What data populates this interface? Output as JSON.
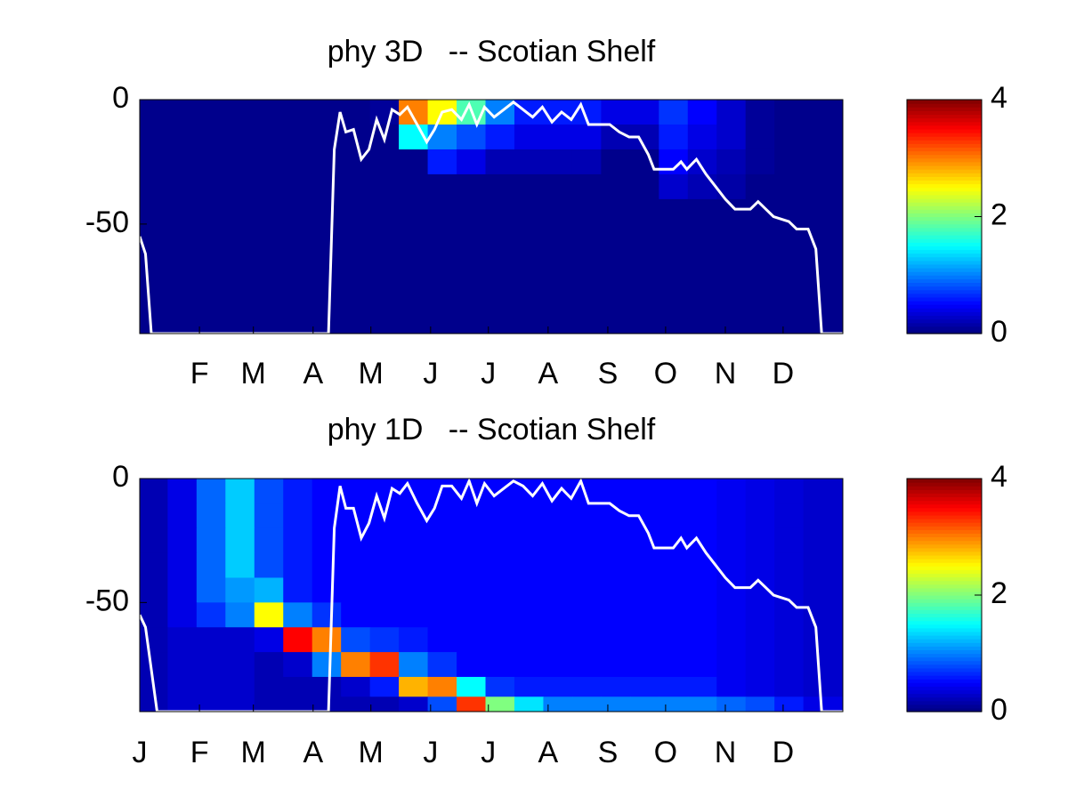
{
  "chart_data": [
    {
      "type": "heatmap",
      "title": "phy 3D   -- Scotian Shelf",
      "xlim": [
        1,
        366
      ],
      "xticks": [
        {
          "value": 32,
          "label": "F"
        },
        {
          "value": 60,
          "label": "M"
        },
        {
          "value": 91,
          "label": "A"
        },
        {
          "value": 121,
          "label": "M"
        },
        {
          "value": 152,
          "label": "J"
        },
        {
          "value": 182,
          "label": "J"
        },
        {
          "value": 213,
          "label": "A"
        },
        {
          "value": 244,
          "label": "S"
        },
        {
          "value": 274,
          "label": "O"
        },
        {
          "value": 305,
          "label": "N"
        },
        {
          "value": 335,
          "label": "D"
        }
      ],
      "ylim": [
        -94,
        0
      ],
      "yticks": [
        0,
        -50
      ],
      "clim": [
        0,
        4
      ],
      "cticks": [
        0,
        2,
        4
      ],
      "colormap": "jet",
      "x": [
        8,
        23,
        38,
        53,
        68,
        83,
        98,
        113,
        128,
        143,
        158,
        173,
        188,
        203,
        218,
        233,
        248,
        263,
        278,
        293,
        308,
        323,
        338,
        353
      ],
      "y": [
        -5,
        -15,
        -25,
        -35,
        -45,
        -55,
        -65,
        -75,
        -85,
        -91
      ],
      "z": [
        [
          0.05,
          0.05,
          0.05,
          0.05,
          0.05,
          0.05,
          0.05,
          0.05,
          0.1,
          3.0,
          2.5,
          1.8,
          1.0,
          0.6,
          0.6,
          0.6,
          0.4,
          0.4,
          0.7,
          0.5,
          0.3,
          0.1,
          0.05,
          0.05
        ],
        [
          0.05,
          0.05,
          0.05,
          0.05,
          0.05,
          0.05,
          0.05,
          0.05,
          0.05,
          1.5,
          1.0,
          0.8,
          0.6,
          0.4,
          0.4,
          0.4,
          0.2,
          0.2,
          0.6,
          0.4,
          0.3,
          0.1,
          0.05,
          0.05
        ],
        [
          0.05,
          0.05,
          0.05,
          0.05,
          0.05,
          0.05,
          0.05,
          0.05,
          0.05,
          0.05,
          0.6,
          0.4,
          0.2,
          0.2,
          0.2,
          0.2,
          0.05,
          0.05,
          0.5,
          0.3,
          0.2,
          0.1,
          0.05,
          0.05
        ],
        [
          0.05,
          0.05,
          0.05,
          0.05,
          0.05,
          0.05,
          0.05,
          0.05,
          0.05,
          0.05,
          0.05,
          0.05,
          0.05,
          0.05,
          0.05,
          0.05,
          0.05,
          0.05,
          0.3,
          0.2,
          0.15,
          0.05,
          0.05,
          0.05
        ],
        [
          0.05,
          0.05,
          0.05,
          0.05,
          0.05,
          0.05,
          0.05,
          0.05,
          0.05,
          0.05,
          0.05,
          0.05,
          0.05,
          0.05,
          0.05,
          0.05,
          0.05,
          0.05,
          0.05,
          0.05,
          0.05,
          0.05,
          0.05,
          0.05
        ],
        [
          0.05,
          0.05,
          0.05,
          0.05,
          0.05,
          0.05,
          0.05,
          0.05,
          0.05,
          0.05,
          0.05,
          0.05,
          0.05,
          0.05,
          0.05,
          0.05,
          0.05,
          0.05,
          0.05,
          0.05,
          0.05,
          0.05,
          0.05,
          0.05
        ],
        [
          0.05,
          0.05,
          0.05,
          0.05,
          0.05,
          0.05,
          0.05,
          0.05,
          0.05,
          0.05,
          0.05,
          0.05,
          0.05,
          0.05,
          0.05,
          0.05,
          0.05,
          0.05,
          0.05,
          0.05,
          0.05,
          0.05,
          0.05,
          0.05
        ],
        [
          0.05,
          0.05,
          0.05,
          0.05,
          0.05,
          0.05,
          0.05,
          0.05,
          0.05,
          0.05,
          0.05,
          0.05,
          0.05,
          0.05,
          0.05,
          0.05,
          0.05,
          0.05,
          0.05,
          0.05,
          0.05,
          0.05,
          0.05,
          0.05
        ],
        [
          0.05,
          0.05,
          0.05,
          0.05,
          0.05,
          0.05,
          0.05,
          0.05,
          0.05,
          0.05,
          0.05,
          0.05,
          0.05,
          0.05,
          0.05,
          0.05,
          0.05,
          0.05,
          0.05,
          0.05,
          0.05,
          0.05,
          0.05,
          0.05
        ],
        [
          0.05,
          0.05,
          0.05,
          0.05,
          0.05,
          0.05,
          0.05,
          0.05,
          0.05,
          0.05,
          0.05,
          0.05,
          0.05,
          0.05,
          0.05,
          0.05,
          0.05,
          0.05,
          0.05,
          0.05,
          0.05,
          0.05,
          0.05,
          0.05
        ]
      ],
      "line": {
        "color": "#ffffff",
        "x": [
          1,
          4,
          7,
          99,
          102,
          105,
          108,
          112,
          116,
          120,
          124,
          128,
          132,
          136,
          140,
          145,
          150,
          154,
          158,
          163,
          168,
          172,
          176,
          180,
          185,
          190,
          195,
          200,
          205,
          210,
          215,
          220,
          225,
          230,
          234,
          245,
          250,
          255,
          260,
          265,
          268,
          278,
          282,
          285,
          290,
          295,
          300,
          305,
          310,
          318,
          322,
          326,
          330,
          338,
          342,
          348,
          352,
          355,
          366
        ],
        "values": [
          -55,
          -62,
          -94,
          -94,
          -20,
          -5,
          -13,
          -12,
          -24,
          -20,
          -8,
          -16,
          -4,
          -6,
          -3,
          -10,
          -17,
          -12,
          -5,
          -4,
          -8,
          -2,
          -10,
          -3,
          -7,
          -4,
          -1,
          -4,
          -7,
          -3,
          -9,
          -5,
          -8,
          -2,
          -10,
          -10,
          -13,
          -15,
          -15,
          -22,
          -28,
          -28,
          -25,
          -28,
          -24,
          -30,
          -35,
          -40,
          -44,
          -44,
          -41,
          -44,
          -47,
          -49,
          -52,
          -52,
          -60,
          -94,
          -94
        ]
      }
    },
    {
      "type": "heatmap",
      "title": "phy 1D   -- Scotian Shelf",
      "xlim": [
        1,
        366
      ],
      "xticks": [
        {
          "value": 1,
          "label": "J"
        },
        {
          "value": 32,
          "label": "F"
        },
        {
          "value": 60,
          "label": "M"
        },
        {
          "value": 91,
          "label": "A"
        },
        {
          "value": 121,
          "label": "M"
        },
        {
          "value": 152,
          "label": "J"
        },
        {
          "value": 182,
          "label": "J"
        },
        {
          "value": 213,
          "label": "A"
        },
        {
          "value": 244,
          "label": "S"
        },
        {
          "value": 274,
          "label": "O"
        },
        {
          "value": 305,
          "label": "N"
        },
        {
          "value": 335,
          "label": "D"
        }
      ],
      "ylim": [
        -94,
        0
      ],
      "yticks": [
        0,
        -50
      ],
      "clim": [
        0,
        4
      ],
      "cticks": [
        0,
        2,
        4
      ],
      "colormap": "jet",
      "x": [
        8,
        23,
        38,
        53,
        68,
        83,
        98,
        113,
        128,
        143,
        158,
        173,
        188,
        203,
        218,
        233,
        248,
        263,
        278,
        293,
        308,
        323,
        338,
        353
      ],
      "y": [
        -5,
        -15,
        -25,
        -35,
        -45,
        -55,
        -65,
        -75,
        -85,
        -91
      ],
      "z": [
        [
          0.2,
          0.4,
          0.9,
          1.3,
          0.8,
          0.6,
          0.5,
          0.5,
          0.5,
          0.5,
          0.5,
          0.5,
          0.5,
          0.5,
          0.5,
          0.5,
          0.5,
          0.5,
          0.5,
          0.5,
          0.45,
          0.4,
          0.35,
          0.3
        ],
        [
          0.2,
          0.4,
          0.9,
          1.3,
          0.8,
          0.6,
          0.5,
          0.5,
          0.5,
          0.5,
          0.5,
          0.5,
          0.5,
          0.5,
          0.5,
          0.5,
          0.5,
          0.5,
          0.5,
          0.5,
          0.45,
          0.4,
          0.35,
          0.3
        ],
        [
          0.2,
          0.4,
          0.9,
          1.3,
          0.8,
          0.6,
          0.5,
          0.5,
          0.5,
          0.5,
          0.5,
          0.5,
          0.5,
          0.5,
          0.5,
          0.5,
          0.5,
          0.5,
          0.5,
          0.5,
          0.45,
          0.4,
          0.35,
          0.3
        ],
        [
          0.2,
          0.4,
          0.9,
          1.3,
          0.8,
          0.6,
          0.5,
          0.5,
          0.5,
          0.5,
          0.5,
          0.5,
          0.5,
          0.5,
          0.5,
          0.5,
          0.5,
          0.5,
          0.5,
          0.5,
          0.45,
          0.4,
          0.35,
          0.3
        ],
        [
          0.2,
          0.4,
          0.9,
          1.1,
          1.2,
          0.6,
          0.5,
          0.5,
          0.5,
          0.5,
          0.5,
          0.5,
          0.5,
          0.5,
          0.5,
          0.5,
          0.5,
          0.5,
          0.5,
          0.5,
          0.45,
          0.4,
          0.35,
          0.3
        ],
        [
          0.2,
          0.4,
          0.7,
          1.0,
          2.5,
          1.0,
          0.7,
          0.5,
          0.5,
          0.5,
          0.5,
          0.5,
          0.5,
          0.5,
          0.5,
          0.5,
          0.5,
          0.5,
          0.5,
          0.5,
          0.45,
          0.4,
          0.35,
          0.3
        ],
        [
          0.2,
          0.3,
          0.3,
          0.3,
          0.4,
          3.5,
          3.0,
          0.8,
          0.7,
          0.6,
          0.5,
          0.5,
          0.5,
          0.5,
          0.5,
          0.5,
          0.5,
          0.5,
          0.5,
          0.5,
          0.45,
          0.4,
          0.35,
          0.3
        ],
        [
          0.2,
          0.3,
          0.3,
          0.3,
          0.2,
          0.3,
          1.0,
          3.0,
          3.3,
          1.0,
          0.7,
          0.5,
          0.5,
          0.5,
          0.5,
          0.5,
          0.5,
          0.5,
          0.5,
          0.5,
          0.45,
          0.4,
          0.35,
          0.3
        ],
        [
          0.2,
          0.3,
          0.3,
          0.3,
          0.2,
          0.2,
          0.2,
          0.3,
          0.6,
          2.8,
          3.0,
          1.5,
          0.7,
          0.6,
          0.6,
          0.6,
          0.6,
          0.6,
          0.6,
          0.6,
          0.45,
          0.4,
          0.35,
          0.3
        ],
        [
          0.2,
          0.3,
          0.3,
          0.3,
          0.2,
          0.2,
          0.2,
          0.2,
          0.2,
          0.3,
          0.8,
          3.3,
          2.0,
          1.4,
          1.0,
          1.0,
          1.0,
          1.0,
          1.0,
          1.0,
          0.9,
          0.8,
          0.6,
          0.4
        ]
      ],
      "line": {
        "color": "#ffffff",
        "x": [
          1,
          4,
          10,
          99,
          102,
          105,
          108,
          112,
          116,
          120,
          124,
          128,
          132,
          136,
          140,
          145,
          150,
          154,
          158,
          163,
          168,
          172,
          176,
          180,
          185,
          190,
          195,
          200,
          205,
          210,
          215,
          220,
          225,
          230,
          234,
          245,
          250,
          255,
          260,
          265,
          268,
          278,
          282,
          285,
          290,
          295,
          300,
          305,
          310,
          318,
          322,
          326,
          330,
          338,
          342,
          348,
          352,
          355,
          366
        ],
        "values": [
          -55,
          -60,
          -94,
          -94,
          -20,
          -3,
          -12,
          -12,
          -24,
          -18,
          -7,
          -16,
          -4,
          -6,
          -2,
          -10,
          -17,
          -12,
          -3,
          -3,
          -8,
          -1,
          -10,
          -2,
          -7,
          -4,
          -1,
          -3,
          -7,
          -2,
          -9,
          -4,
          -8,
          -1,
          -10,
          -10,
          -13,
          -15,
          -15,
          -22,
          -28,
          -28,
          -24,
          -28,
          -24,
          -30,
          -35,
          -40,
          -44,
          -44,
          -41,
          -44,
          -47,
          -49,
          -52,
          -52,
          -60,
          -94,
          -94
        ]
      }
    }
  ]
}
